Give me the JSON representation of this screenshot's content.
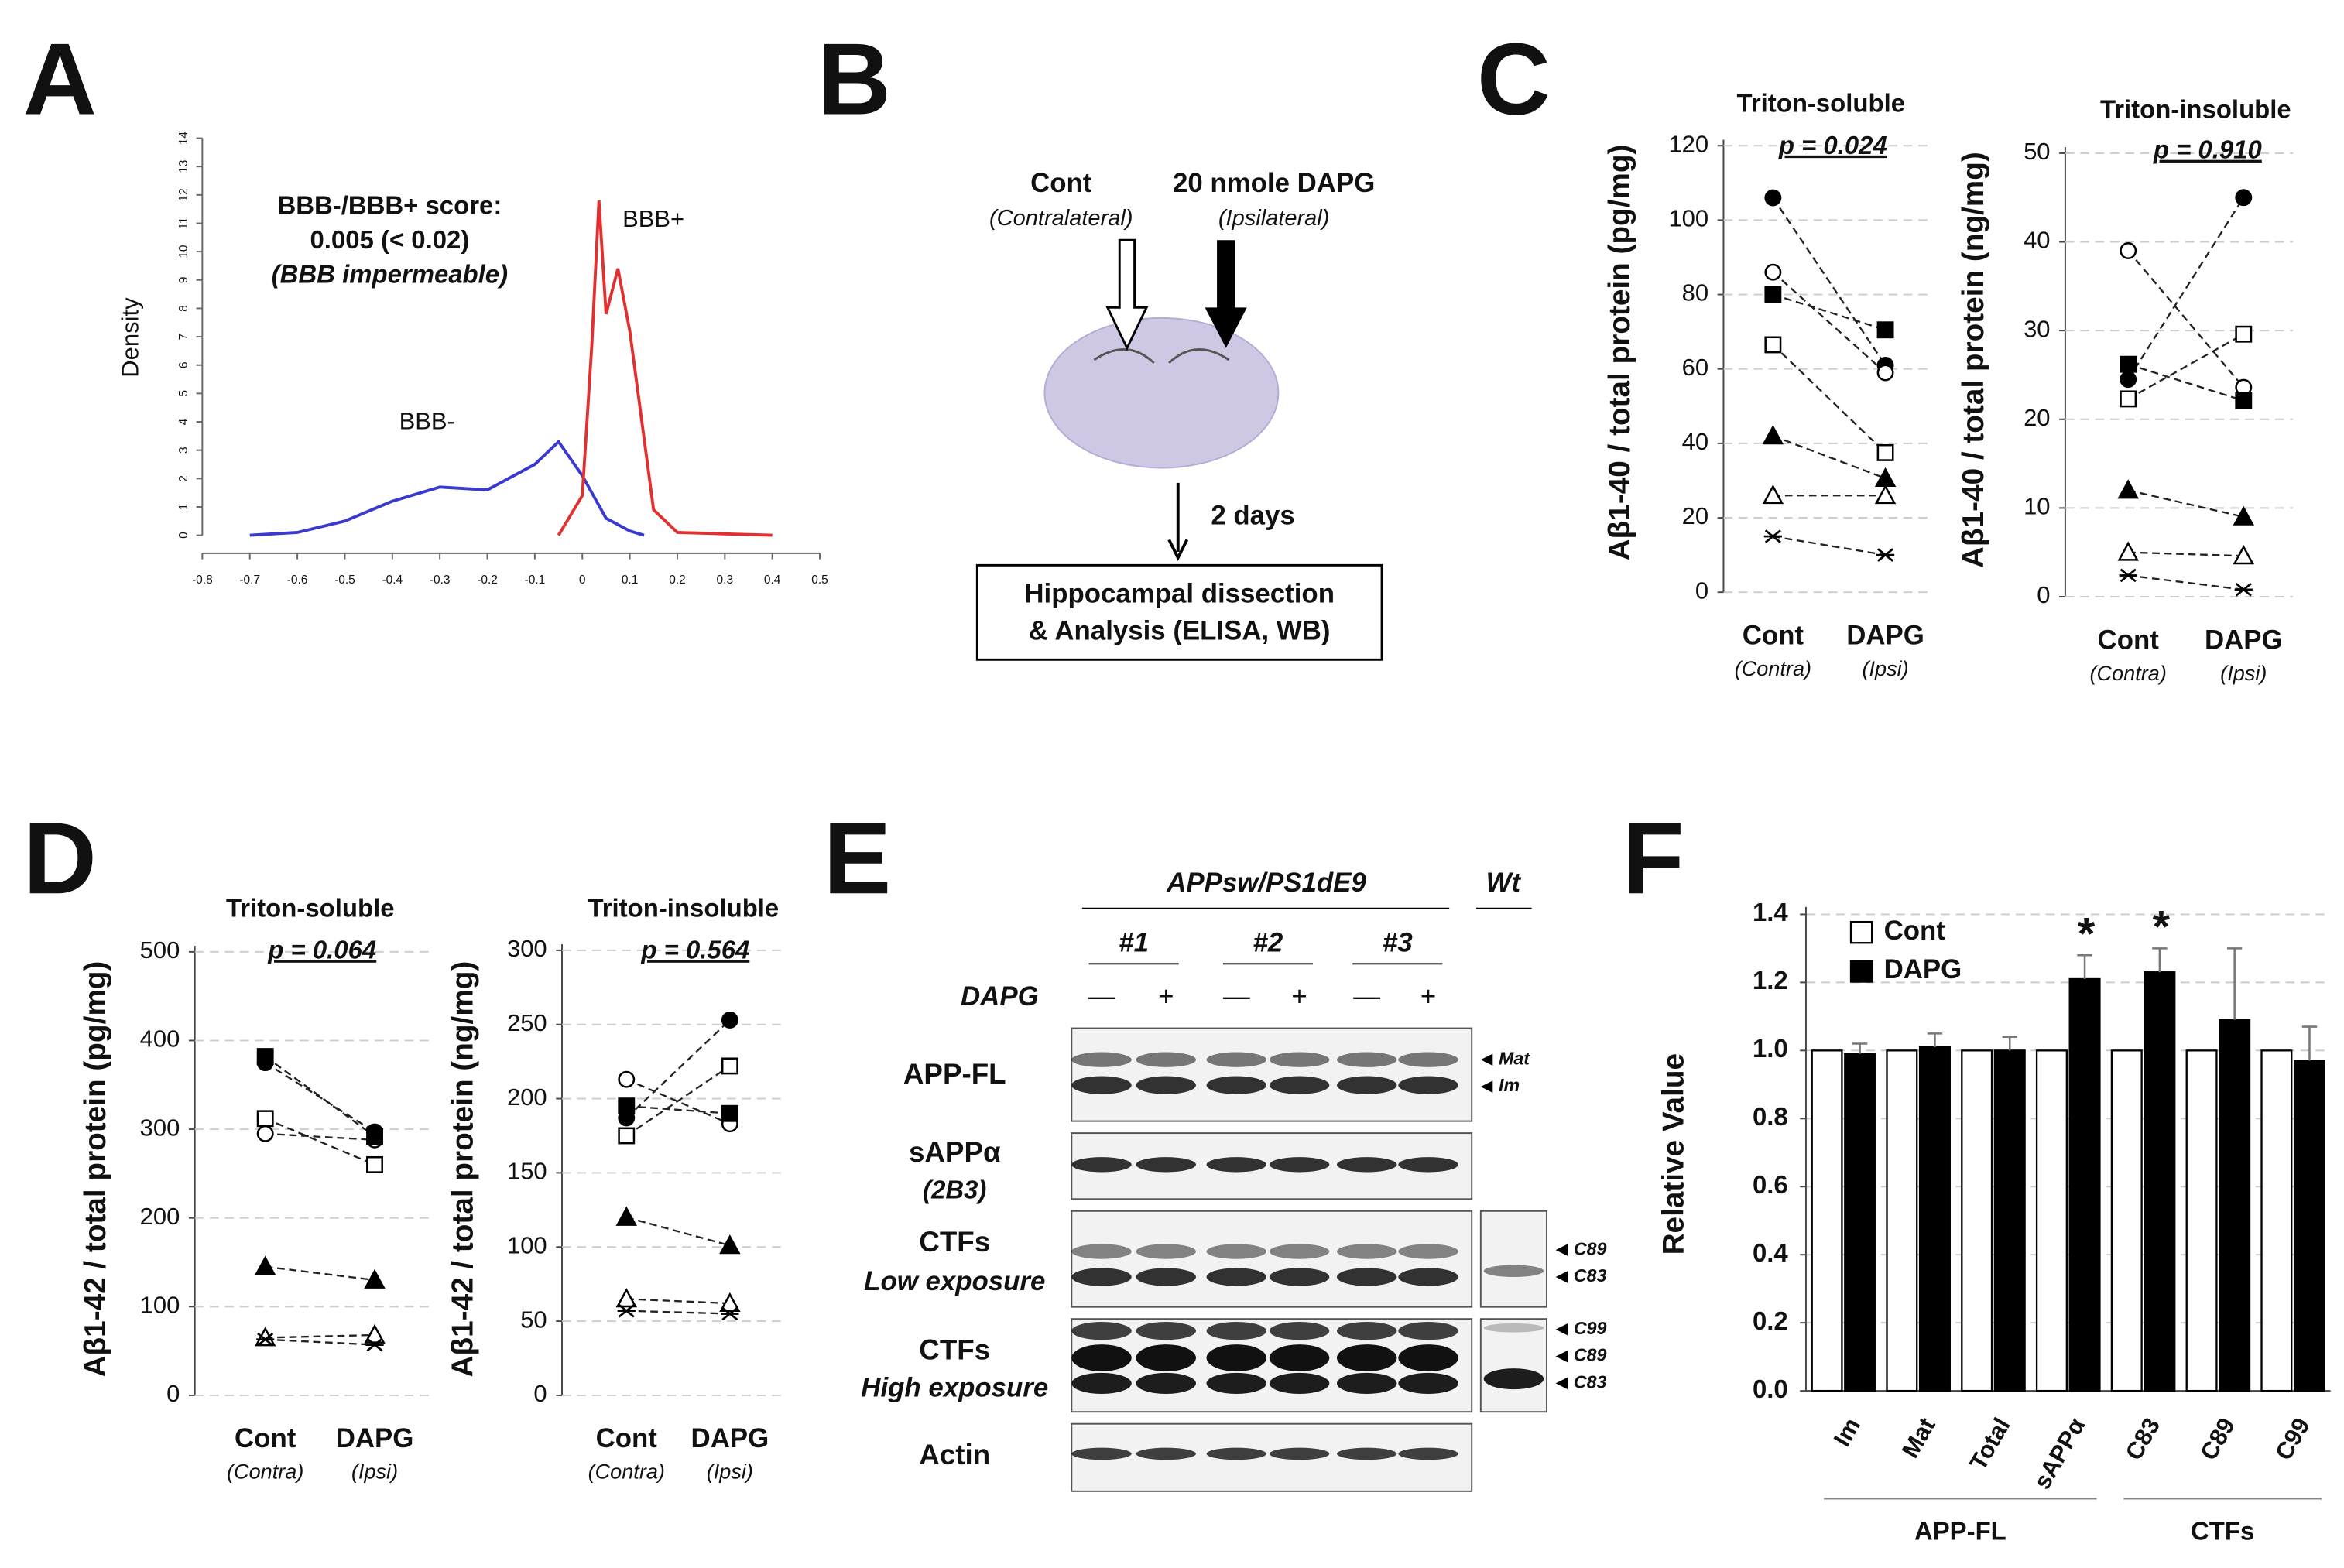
{
  "panel_labels": [
    "A",
    "B",
    "C",
    "D",
    "E",
    "F"
  ],
  "chart_data": [
    {
      "type": "line",
      "y_label": "Density",
      "xlim": [
        -0.8,
        0.5
      ],
      "xticks": [
        -0.8,
        -0.7,
        -0.6,
        -0.5,
        -0.4,
        -0.3,
        -0.2,
        -0.1,
        0,
        0.1,
        0.2,
        0.3,
        0.4,
        0.5
      ],
      "ylim": [
        0,
        14
      ],
      "yticks": [
        0,
        1,
        2,
        3,
        4,
        5,
        6,
        7,
        8,
        9,
        10,
        11,
        12,
        13,
        14
      ],
      "annotations": [
        "BBB-/BBB+ score:",
        "0.005 (< 0.02)",
        "(BBB impermeable)"
      ],
      "series": [
        {
          "name": "BBB-",
          "color": "#3a3ad0",
          "x": [
            -0.7,
            -0.6,
            -0.5,
            -0.4,
            -0.3,
            -0.2,
            -0.1,
            -0.05,
            0,
            0.05,
            0.1,
            0.13
          ],
          "values": [
            0,
            0.1,
            0.5,
            1.2,
            1.7,
            1.6,
            2.5,
            3.3,
            2.1,
            0.6,
            0.15,
            0
          ]
        },
        {
          "name": "BBB+",
          "color": "#e03030",
          "x": [
            -0.05,
            0,
            0.02,
            0.035,
            0.05,
            0.075,
            0.1,
            0.15,
            0.2,
            0.3,
            0.4
          ],
          "values": [
            0,
            1.4,
            6.7,
            11.8,
            7.8,
            9.4,
            7.2,
            0.9,
            0.1,
            0.05,
            0
          ]
        }
      ]
    },
    {
      "type": "paired",
      "title": "Triton-soluble",
      "subtitle": "p = 0.024",
      "y_label": "Aβ1-40 / total protein (pg/mg)",
      "categories": [
        "Cont",
        "DAPG"
      ],
      "category_sublabels": [
        "(Contra)",
        "(Ipsi)"
      ],
      "ylim": [
        0,
        120
      ],
      "yticks": [
        0,
        20,
        40,
        60,
        80,
        100,
        120
      ],
      "grid": true,
      "series": [
        {
          "marker": "filled-circle",
          "values": [
            106,
            61
          ]
        },
        {
          "marker": "open-circle",
          "values": [
            86,
            59
          ]
        },
        {
          "marker": "filled-square",
          "values": [
            80,
            70.5
          ]
        },
        {
          "marker": "open-square",
          "values": [
            66.5,
            37.5
          ]
        },
        {
          "marker": "filled-triangle",
          "values": [
            42,
            30.6
          ]
        },
        {
          "marker": "open-triangle",
          "values": [
            26,
            26
          ]
        },
        {
          "marker": "asterisk",
          "values": [
            15,
            10
          ]
        }
      ]
    },
    {
      "type": "paired",
      "title": "Triton-insoluble",
      "subtitle": "p = 0.910",
      "y_label": "Aβ1-40 / total protein (ng/mg)",
      "categories": [
        "Cont",
        "DAPG"
      ],
      "category_sublabels": [
        "(Contra)",
        "(Ipsi)"
      ],
      "ylim": [
        0,
        50
      ],
      "yticks": [
        0,
        10,
        20,
        30,
        40,
        50
      ],
      "grid": true,
      "series": [
        {
          "marker": "filled-circle",
          "values": [
            24.5,
            45
          ]
        },
        {
          "marker": "open-circle",
          "values": [
            39,
            23.6
          ]
        },
        {
          "marker": "filled-square",
          "values": [
            26.2,
            22.1
          ]
        },
        {
          "marker": "open-square",
          "values": [
            22.3,
            29.6
          ]
        },
        {
          "marker": "filled-triangle",
          "values": [
            12,
            9
          ]
        },
        {
          "marker": "open-triangle",
          "values": [
            5,
            4.6
          ]
        },
        {
          "marker": "asterisk",
          "values": [
            2.4,
            0.8
          ]
        }
      ]
    },
    {
      "type": "paired",
      "title": "Triton-soluble",
      "subtitle": "p = 0.064",
      "y_label": "Aβ1-42 / total protein (pg/mg)",
      "categories": [
        "Cont",
        "DAPG"
      ],
      "category_sublabels": [
        "(Contra)",
        "(Ipsi)"
      ],
      "ylim": [
        0,
        500
      ],
      "yticks": [
        0,
        100,
        200,
        300,
        400,
        500
      ],
      "grid": true,
      "series": [
        {
          "marker": "filled-circle",
          "values": [
            375,
            297
          ]
        },
        {
          "marker": "open-circle",
          "values": [
            295,
            288
          ]
        },
        {
          "marker": "filled-square",
          "values": [
            382,
            292
          ]
        },
        {
          "marker": "open-square",
          "values": [
            312,
            260
          ]
        },
        {
          "marker": "filled-triangle",
          "values": [
            145,
            130
          ]
        },
        {
          "marker": "open-triangle",
          "values": [
            65,
            68
          ]
        },
        {
          "marker": "asterisk",
          "values": [
            63,
            57
          ]
        }
      ]
    },
    {
      "type": "paired",
      "title": "Triton-insoluble",
      "subtitle": "p = 0.564",
      "y_label": "Aβ1-42 / total protein (ng/mg)",
      "categories": [
        "Cont",
        "DAPG"
      ],
      "category_sublabels": [
        "(Contra)",
        "(Ipsi)"
      ],
      "ylim": [
        0,
        300
      ],
      "yticks": [
        0,
        50,
        100,
        150,
        200,
        250,
        300
      ],
      "grid": true,
      "series": [
        {
          "marker": "filled-circle",
          "values": [
            187,
            253
          ]
        },
        {
          "marker": "open-circle",
          "values": [
            213,
            183
          ]
        },
        {
          "marker": "filled-square",
          "values": [
            195,
            190
          ]
        },
        {
          "marker": "open-square",
          "values": [
            175,
            222
          ]
        },
        {
          "marker": "filled-triangle",
          "values": [
            120,
            101
          ]
        },
        {
          "marker": "open-triangle",
          "values": [
            65,
            62
          ]
        },
        {
          "marker": "asterisk",
          "values": [
            57,
            55
          ]
        }
      ]
    },
    {
      "type": "bar",
      "y_label": "Relative Value",
      "categories": [
        "Im",
        "Mat",
        "Total",
        "sAPPα",
        "C83",
        "C89",
        "C99"
      ],
      "groups": [
        {
          "label": "APP-FL",
          "size": 4
        },
        {
          "label": "CTFs",
          "size": 3
        }
      ],
      "significance": [
        null,
        null,
        null,
        "*",
        "*",
        null,
        null
      ],
      "ylim": [
        0,
        1.4
      ],
      "yticks": [
        {
          "value": 0,
          "label": "0.0"
        },
        0.2,
        0.4,
        0.6,
        0.8,
        {
          "value": 1,
          "label": "1.0"
        },
        1.2,
        1.4
      ],
      "grid": true,
      "series": [
        {
          "name": "Cont",
          "color": "#ffffff",
          "values": [
            1,
            1,
            1,
            1,
            1,
            1,
            1
          ]
        },
        {
          "name": "DAPG",
          "color": "#000000",
          "values": [
            0.99,
            1.01,
            1.0,
            1.21,
            1.23,
            1.09,
            0.97
          ],
          "errors": [
            0.03,
            0.04,
            0.04,
            0.07,
            0.07,
            0.21,
            0.1
          ]
        }
      ]
    }
  ],
  "diagram": {
    "left_label": "Cont",
    "left_sublabel": "(Contralateral)",
    "right_label": "20 nmole DAPG",
    "right_sublabel": "(Ipsilateral)",
    "step": "2 days",
    "box": [
      "Hippocampal dissection",
      "& Analysis (ELISA, WB)"
    ]
  },
  "blot": {
    "group": "APPsw/PS1dE9",
    "control": "Wt",
    "mice": [
      "#1",
      "#2",
      "#3"
    ],
    "treatment": "DAPG",
    "lanes": [
      "—",
      "+",
      "—",
      "+",
      "—",
      "+"
    ],
    "rows": [
      {
        "label": "APP-FL",
        "bands": [
          "Mat",
          "Im"
        ]
      },
      {
        "label": "sAPPα",
        "sublabel": "(2B3)"
      },
      {
        "label": "CTFs",
        "sublabel": "Low exposure",
        "bands": [
          "C89",
          "C83"
        ]
      },
      {
        "label": "CTFs",
        "sublabel": "High exposure",
        "bands": [
          "C99",
          "C89",
          "C83"
        ]
      },
      {
        "label": "Actin"
      }
    ]
  }
}
